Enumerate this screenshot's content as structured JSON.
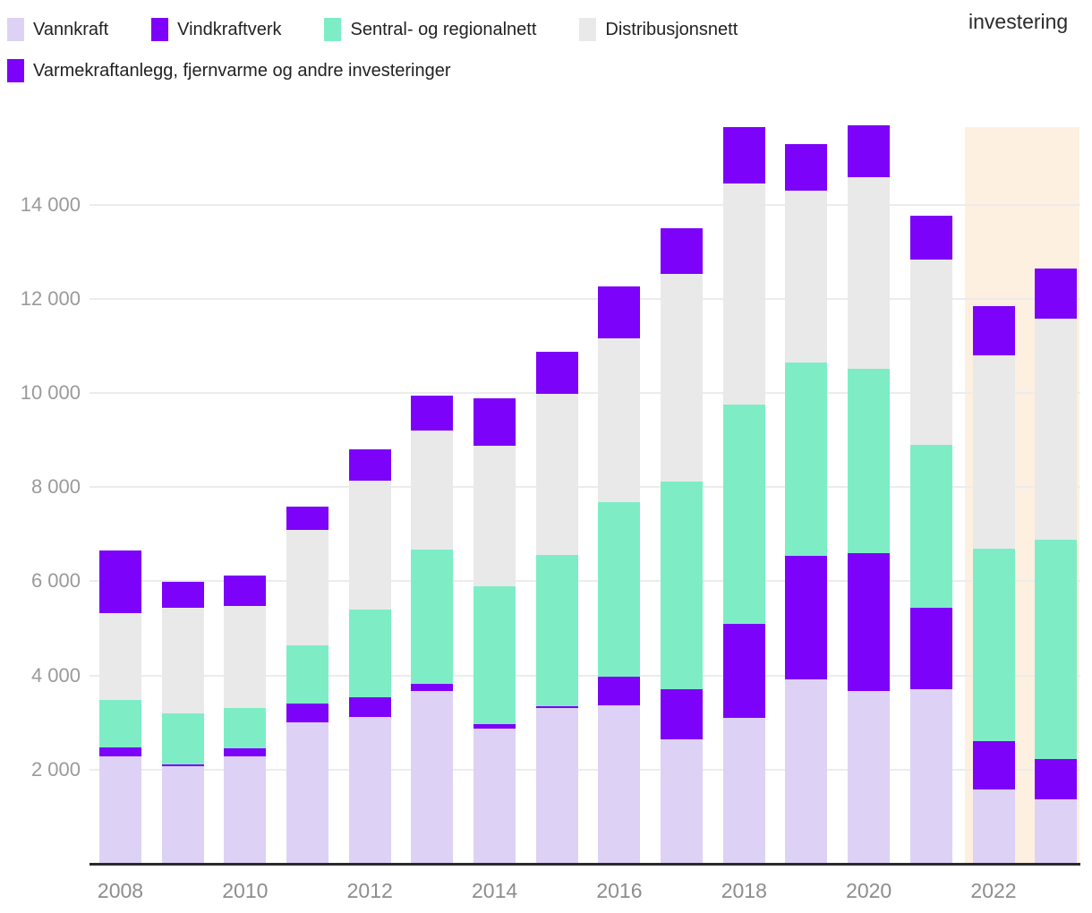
{
  "title_fragment": "investering",
  "legend": {
    "items": [
      {
        "label": "Vannkraft",
        "color": "#ddd2f5"
      },
      {
        "label": "Vindkraftverk",
        "color": "#7c02fa"
      },
      {
        "label": "Sentral- og regionalnett",
        "color": "#7eedc6"
      },
      {
        "label": "Distribusjonsnett",
        "color": "#e9e9e9"
      },
      {
        "label": "Varmekraftanlegg, fjernvarme og andre investeringer",
        "color": "#7c02fa"
      }
    ]
  },
  "chart_data": {
    "type": "bar",
    "stacked": true,
    "categories": [
      2008,
      2009,
      2010,
      2011,
      2012,
      2013,
      2014,
      2015,
      2016,
      2017,
      2018,
      2019,
      2020,
      2021,
      2022,
      2023
    ],
    "series": [
      {
        "name": "Vannkraft",
        "color": "#ddd2f5",
        "values": [
          2290,
          2080,
          2290,
          3000,
          3120,
          3660,
          2870,
          3300,
          3370,
          2650,
          3100,
          3910,
          3660,
          3700,
          1570,
          1370
        ]
      },
      {
        "name": "Vindkraftverk",
        "color": "#7c02fa",
        "values": [
          190,
          30,
          170,
          410,
          410,
          170,
          100,
          50,
          600,
          1050,
          1990,
          2630,
          2930,
          1730,
          1030,
          850
        ]
      },
      {
        "name": "Sentral- og regionalnett",
        "color": "#7eedc6",
        "values": [
          1000,
          1090,
          840,
          1220,
          1870,
          2850,
          2920,
          3210,
          3720,
          4410,
          4660,
          4100,
          3930,
          3460,
          4090,
          4660
        ]
      },
      {
        "name": "Distribusjonsnett",
        "color": "#e9e9e9",
        "values": [
          1840,
          2230,
          2180,
          2470,
          2740,
          2520,
          2980,
          3430,
          3470,
          4410,
          4700,
          3650,
          4070,
          3940,
          4110,
          4700
        ]
      },
      {
        "name": "Varmekraftanlegg, fjernvarme og andre investeringer",
        "color": "#7c02fa",
        "values": [
          1330,
          560,
          650,
          480,
          660,
          750,
          1010,
          880,
          1110,
          970,
          1200,
          990,
          1090,
          940,
          1040,
          1070
        ]
      }
    ],
    "totals": [
      6650,
      5990,
      6130,
      7580,
      8800,
      9950,
      9880,
      10870,
      12270,
      13490,
      15650,
      15280,
      15680,
      13770,
      11840,
      12650
    ],
    "ylim": [
      0,
      15800
    ],
    "y_ticks": [
      2000,
      4000,
      6000,
      8000,
      10000,
      12000,
      14000
    ],
    "y_tick_labels": [
      "2 000",
      "4 000",
      "6 000",
      "8 000",
      "10 000",
      "12 000",
      "14 000"
    ],
    "x_tick_years": [
      2008,
      2010,
      2012,
      2014,
      2016,
      2018,
      2020,
      2022
    ],
    "x_tick_labels": [
      "2008",
      "2010",
      "2012",
      "2014",
      "2016",
      "2018",
      "2020",
      "2022"
    ],
    "highlight_band": {
      "years": [
        2022,
        2023
      ],
      "color": "#fdf0e1"
    },
    "grid": "horizontal-only",
    "legend_position": "top-left"
  }
}
